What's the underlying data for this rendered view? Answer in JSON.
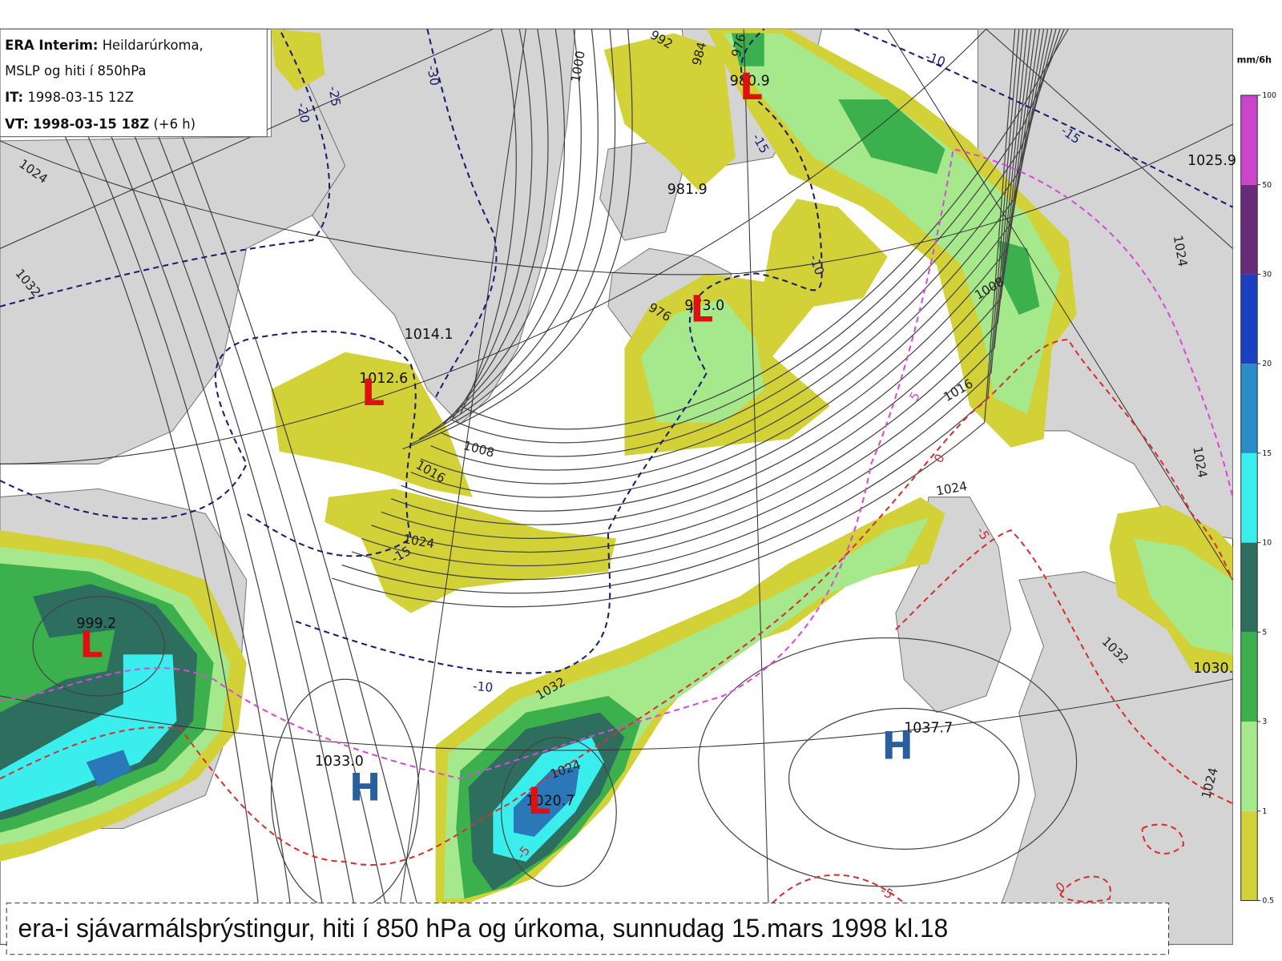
{
  "header": {
    "model_label": "ERA Interim:",
    "model_desc": "Heildarúrkoma,",
    "desc2": "MSLP og hiti í 850hPa",
    "it_label": "IT:",
    "it_value": "1998-03-15 12Z",
    "vt_label": "VT:",
    "vt_value": "1998-03-15 18Z",
    "vt_offset": "(+6 h)"
  },
  "colorbar": {
    "unit": "mm/6h",
    "levels": [
      0.5,
      1,
      3,
      5,
      10,
      15,
      20,
      30,
      50,
      100
    ],
    "colors": [
      "#d2d238",
      "#a6e88c",
      "#3cb04c",
      "#2e6e5e",
      "#3aeeee",
      "#2a8cc8",
      "#1a3fc0",
      "#6a2a7a",
      "#cc44cc"
    ]
  },
  "centers": [
    {
      "symbol": "L",
      "value": "980.9"
    },
    {
      "value": "981.9"
    },
    {
      "symbol": "L",
      "value": "973.0"
    },
    {
      "value": "1014.1"
    },
    {
      "symbol": "L",
      "value": "1012.6"
    },
    {
      "symbol": "L",
      "value": "999.2"
    },
    {
      "symbol": "H",
      "value": "1033.0"
    },
    {
      "symbol": "L",
      "value": "1020.7"
    },
    {
      "symbol": "H",
      "value": "1037.7"
    },
    {
      "value": "1025.9"
    },
    {
      "value": "1030."
    }
  ],
  "isobar_labels": [
    1024,
    1032,
    1000,
    992,
    984,
    976,
    976,
    1008,
    1016,
    1024,
    1032,
    1024,
    1016,
    1008,
    1024,
    1024,
    1032,
    1024,
    1024
  ],
  "temp_labels": [
    -30,
    -25,
    -20,
    -10,
    -15,
    -15,
    -10,
    -15,
    -10,
    5,
    0,
    -5,
    -5,
    -5,
    0
  ],
  "caption": "era-i sjávarmálsþrýstingur, hiti í 850 hPa og úrkoma, sunnudag 15.mars 1998 kl.18"
}
